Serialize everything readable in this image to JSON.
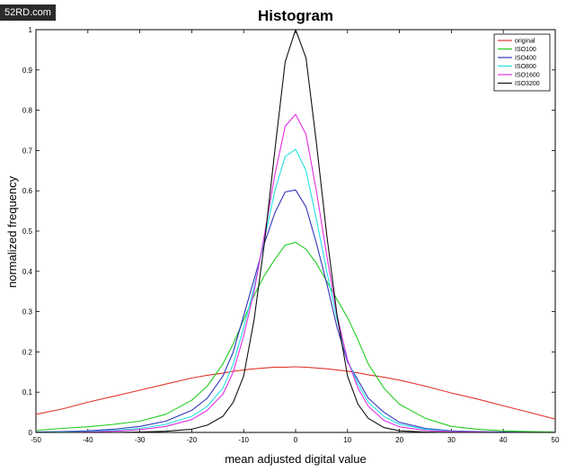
{
  "watermark": "52RD.com",
  "chart_data": {
    "type": "line",
    "title": "Histogram",
    "xlabel": "mean adjusted digital value",
    "ylabel": "normalized frequency",
    "xlim": [
      -50,
      50
    ],
    "ylim": [
      0,
      1
    ],
    "xticks": [
      -50,
      -40,
      -30,
      -20,
      -10,
      0,
      10,
      20,
      30,
      40,
      50
    ],
    "yticks": [
      0,
      0.1,
      0.2,
      0.3,
      0.4,
      0.5,
      0.6,
      0.7,
      0.8,
      0.9,
      1
    ],
    "grid": false,
    "legend_position": "top-right",
    "x": [
      -50,
      -45,
      -40,
      -35,
      -30,
      -25,
      -20,
      -17,
      -14,
      -12,
      -10,
      -8,
      -6,
      -4,
      -2,
      0,
      2,
      4,
      6,
      8,
      10,
      12,
      14,
      17,
      20,
      25,
      30,
      35,
      40,
      45,
      50
    ],
    "series": [
      {
        "name": "original",
        "color": "#e0362c",
        "values": [
          0.045,
          0.058,
          0.075,
          0.09,
          0.105,
          0.12,
          0.135,
          0.142,
          0.147,
          0.152,
          0.155,
          0.158,
          0.16,
          0.162,
          0.162,
          0.163,
          0.162,
          0.16,
          0.158,
          0.155,
          0.152,
          0.148,
          0.143,
          0.137,
          0.13,
          0.115,
          0.098,
          0.083,
          0.066,
          0.05,
          0.033
        ]
      },
      {
        "name": "ISO100",
        "color": "#22cc22",
        "values": [
          0.005,
          0.01,
          0.014,
          0.02,
          0.028,
          0.045,
          0.08,
          0.115,
          0.17,
          0.22,
          0.28,
          0.34,
          0.39,
          0.43,
          0.465,
          0.472,
          0.455,
          0.42,
          0.375,
          0.33,
          0.285,
          0.23,
          0.17,
          0.11,
          0.07,
          0.035,
          0.015,
          0.008,
          0.004,
          0.002,
          0.001
        ]
      },
      {
        "name": "ISO400",
        "color": "#3333bb",
        "values": [
          0.001,
          0.002,
          0.004,
          0.008,
          0.015,
          0.028,
          0.055,
          0.085,
          0.14,
          0.2,
          0.29,
          0.38,
          0.47,
          0.545,
          0.597,
          0.602,
          0.56,
          0.47,
          0.37,
          0.26,
          0.175,
          0.13,
          0.085,
          0.05,
          0.025,
          0.01,
          0.004,
          0.002,
          0.001,
          0.0,
          0.0
        ]
      },
      {
        "name": "ISO800",
        "color": "#22e2e2",
        "values": [
          0.0,
          0.001,
          0.002,
          0.005,
          0.01,
          0.02,
          0.04,
          0.065,
          0.11,
          0.17,
          0.26,
          0.36,
          0.48,
          0.6,
          0.685,
          0.703,
          0.65,
          0.53,
          0.4,
          0.28,
          0.18,
          0.12,
          0.075,
          0.04,
          0.02,
          0.008,
          0.003,
          0.001,
          0.0,
          0.0,
          0.0
        ]
      },
      {
        "name": "ISO1600",
        "color": "#e22ee2",
        "values": [
          0.0,
          0.0,
          0.001,
          0.003,
          0.007,
          0.015,
          0.032,
          0.055,
          0.095,
          0.15,
          0.24,
          0.35,
          0.49,
          0.64,
          0.76,
          0.79,
          0.74,
          0.6,
          0.44,
          0.29,
          0.18,
          0.11,
          0.065,
          0.03,
          0.014,
          0.005,
          0.002,
          0.001,
          0.0,
          0.0,
          0.0
        ]
      },
      {
        "name": "ISO3200",
        "color": "#111111",
        "values": [
          0.0,
          0.0,
          0.0,
          0.0,
          0.001,
          0.003,
          0.008,
          0.018,
          0.04,
          0.075,
          0.14,
          0.28,
          0.47,
          0.7,
          0.92,
          1.0,
          0.93,
          0.72,
          0.49,
          0.29,
          0.14,
          0.07,
          0.035,
          0.012,
          0.004,
          0.001,
          0.0,
          0.0,
          0.0,
          0.0,
          0.0
        ]
      }
    ]
  }
}
